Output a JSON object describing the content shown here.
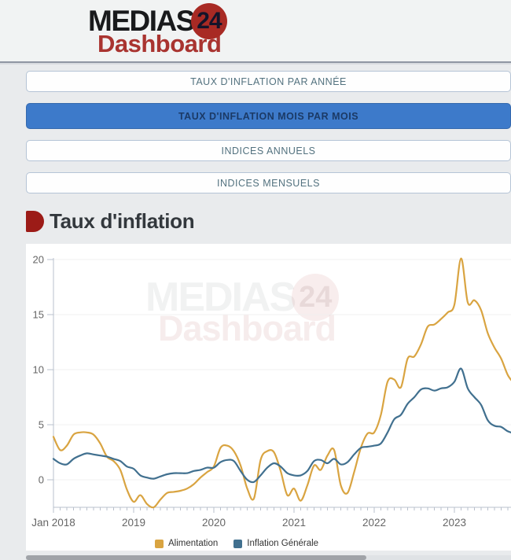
{
  "header": {
    "logo_medias": "MEDIAS",
    "logo_number": "24",
    "logo_dashboard": "Dashboard"
  },
  "nav": {
    "buttons": [
      {
        "label": "TAUX D'INFLATION PAR ANNÉE",
        "active": false
      },
      {
        "label": "TAUX D'INFLATION MOIS PAR MOIS",
        "active": true
      },
      {
        "label": "INDICES ANNUELS",
        "active": false
      },
      {
        "label": "INDICES MENSUELS",
        "active": false
      }
    ]
  },
  "section": {
    "title": "Taux d'inflation"
  },
  "watermark": {
    "medias": "MEDIAS",
    "number": "24",
    "dashboard": "Dashboard"
  },
  "colors": {
    "accent_blue": "#3d7aca",
    "brand_red": "#a82a24",
    "series_gold": "#D9A441",
    "series_blue": "#41708F",
    "axis_text": "#666666",
    "grid_line": "#f0f0f0",
    "axis_line": "#b9c0cc"
  },
  "chart_data": {
    "type": "line",
    "title": "",
    "x_start": "Jan 2018",
    "frequency": "monthly",
    "x_tick_labels": [
      "Jan 2018",
      "2019",
      "2020",
      "2021",
      "2022",
      "2023"
    ],
    "xlabel": "",
    "ylabel": "",
    "ylim": [
      -2.5,
      20
    ],
    "yticks": [
      0,
      5,
      10,
      15,
      20
    ],
    "grid": true,
    "legend_position": "bottom",
    "series": [
      {
        "name": "Alimentation",
        "color": "#D9A441",
        "values": [
          3.9,
          2.7,
          3.1,
          4.1,
          4.3,
          4.3,
          4.1,
          3.3,
          2.1,
          1.7,
          0.9,
          -0.9,
          -2.0,
          -1.4,
          -2.2,
          -2.5,
          -1.8,
          -1.2,
          -1.1,
          -1.0,
          -0.8,
          -0.4,
          0.2,
          0.7,
          1.2,
          2.9,
          3.1,
          2.6,
          1.3,
          -0.8,
          -1.7,
          1.8,
          2.6,
          2.5,
          0.8,
          -1.4,
          -0.8,
          -1.9,
          -0.5,
          1.3,
          0.9,
          2.2,
          2.7,
          -0.5,
          -1.2,
          0.7,
          2.9,
          4.2,
          4.3,
          5.9,
          8.9,
          9.1,
          8.4,
          11.0,
          11.2,
          12.3,
          13.9,
          14.1,
          14.6,
          15.2,
          15.9,
          20.1,
          16.1,
          16.3,
          15.4,
          13.3,
          12.0,
          11.0,
          9.5,
          8.7
        ]
      },
      {
        "name": "Inflation Générale",
        "color": "#41708F",
        "values": [
          1.9,
          1.5,
          1.4,
          1.9,
          2.2,
          2.4,
          2.3,
          2.2,
          2.1,
          1.9,
          1.7,
          1.2,
          1.0,
          0.4,
          0.2,
          0.1,
          0.3,
          0.5,
          0.6,
          0.6,
          0.6,
          0.8,
          0.9,
          1.1,
          1.1,
          1.6,
          1.8,
          1.7,
          0.8,
          0.0,
          -0.2,
          0.4,
          1.1,
          1.5,
          1.2,
          0.6,
          0.4,
          0.4,
          0.8,
          1.7,
          1.8,
          1.5,
          1.9,
          1.4,
          1.6,
          2.3,
          2.9,
          3.0,
          3.1,
          3.3,
          4.3,
          5.5,
          5.9,
          6.9,
          7.5,
          8.2,
          8.3,
          8.1,
          8.3,
          8.4,
          8.9,
          10.1,
          8.3,
          7.5,
          6.8,
          5.4,
          4.9,
          4.8,
          4.4,
          4.2
        ]
      }
    ]
  }
}
